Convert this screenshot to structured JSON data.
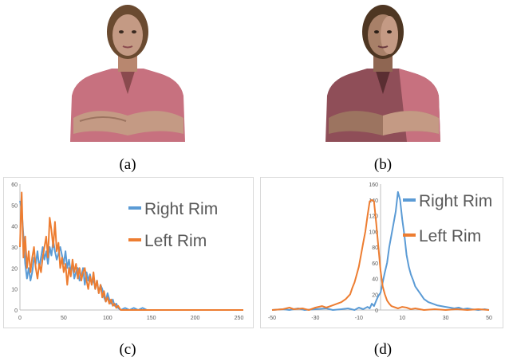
{
  "captions": {
    "a": "(a)",
    "b": "(b)",
    "c": "(c)",
    "d": "(d)"
  },
  "images": {
    "a": {
      "icon": "woman-figure-icon"
    },
    "b": {
      "icon": "woman-figure-icon"
    }
  },
  "colors": {
    "right_rim": "#5b9bd5",
    "left_rim": "#ed7d31",
    "skin": "#c49a84",
    "shirt": "#c7717f",
    "hair": "#6a4a30"
  },
  "chart_data": [
    {
      "type": "line",
      "title": "",
      "xlabel": "",
      "ylabel": "",
      "xlim": [
        0,
        255
      ],
      "ylim": [
        0,
        60
      ],
      "xticks": [
        "0",
        "50",
        "100",
        "150",
        "200",
        "250"
      ],
      "yticks": [
        "0",
        "10",
        "20",
        "30",
        "40",
        "50",
        "60"
      ],
      "legend_position": "top-right",
      "grid": false,
      "series": [
        {
          "name": "Right Rim",
          "color": "#5b9bd5",
          "points": [
            [
              0,
              52
            ],
            [
              2,
              48
            ],
            [
              4,
              35
            ],
            [
              6,
              22
            ],
            [
              8,
              15
            ],
            [
              10,
              20
            ],
            [
              12,
              14
            ],
            [
              14,
              18
            ],
            [
              16,
              25
            ],
            [
              18,
              22
            ],
            [
              20,
              28
            ],
            [
              22,
              20
            ],
            [
              24,
              25
            ],
            [
              26,
              30
            ],
            [
              28,
              24
            ],
            [
              30,
              28
            ],
            [
              32,
              22
            ],
            [
              34,
              30
            ],
            [
              36,
              26
            ],
            [
              38,
              33
            ],
            [
              40,
              28
            ],
            [
              42,
              24
            ],
            [
              44,
              27
            ],
            [
              46,
              30
            ],
            [
              48,
              26
            ],
            [
              50,
              22
            ],
            [
              52,
              28
            ],
            [
              54,
              20
            ],
            [
              56,
              24
            ],
            [
              58,
              18
            ],
            [
              60,
              22
            ],
            [
              62,
              15
            ],
            [
              64,
              18
            ],
            [
              66,
              20
            ],
            [
              68,
              14
            ],
            [
              70,
              16
            ],
            [
              72,
              20
            ],
            [
              74,
              12
            ],
            [
              76,
              18
            ],
            [
              78,
              14
            ],
            [
              80,
              17
            ],
            [
              82,
              12
            ],
            [
              84,
              15
            ],
            [
              86,
              10
            ],
            [
              88,
              14
            ],
            [
              90,
              8
            ],
            [
              92,
              12
            ],
            [
              94,
              10
            ],
            [
              96,
              6
            ],
            [
              98,
              4
            ],
            [
              100,
              8
            ],
            [
              102,
              5
            ],
            [
              104,
              3
            ],
            [
              106,
              5
            ],
            [
              108,
              2
            ],
            [
              110,
              3
            ],
            [
              112,
              1
            ],
            [
              115,
              0
            ],
            [
              120,
              1
            ],
            [
              125,
              0
            ],
            [
              130,
              1
            ],
            [
              135,
              0
            ],
            [
              140,
              1
            ],
            [
              145,
              0
            ],
            [
              150,
              0
            ],
            [
              160,
              0
            ],
            [
              200,
              0
            ],
            [
              255,
              0
            ]
          ]
        },
        {
          "name": "Left Rim",
          "color": "#ed7d31",
          "points": [
            [
              0,
              30
            ],
            [
              1,
              45
            ],
            [
              2,
              56
            ],
            [
              3,
              40
            ],
            [
              4,
              25
            ],
            [
              6,
              35
            ],
            [
              8,
              20
            ],
            [
              10,
              28
            ],
            [
              12,
              18
            ],
            [
              14,
              25
            ],
            [
              16,
              30
            ],
            [
              18,
              20
            ],
            [
              20,
              15
            ],
            [
              22,
              22
            ],
            [
              24,
              18
            ],
            [
              26,
              25
            ],
            [
              28,
              30
            ],
            [
              30,
              35
            ],
            [
              32,
              25
            ],
            [
              34,
              44
            ],
            [
              36,
              38
            ],
            [
              38,
              30
            ],
            [
              40,
              42
            ],
            [
              42,
              28
            ],
            [
              44,
              32
            ],
            [
              46,
              20
            ],
            [
              48,
              25
            ],
            [
              50,
              18
            ],
            [
              52,
              22
            ],
            [
              54,
              12
            ],
            [
              56,
              20
            ],
            [
              58,
              16
            ],
            [
              60,
              24
            ],
            [
              62,
              18
            ],
            [
              64,
              22
            ],
            [
              66,
              15
            ],
            [
              68,
              20
            ],
            [
              70,
              14
            ],
            [
              72,
              18
            ],
            [
              74,
              20
            ],
            [
              76,
              14
            ],
            [
              78,
              10
            ],
            [
              80,
              16
            ],
            [
              82,
              12
            ],
            [
              84,
              18
            ],
            [
              86,
              10
            ],
            [
              88,
              14
            ],
            [
              90,
              8
            ],
            [
              92,
              12
            ],
            [
              94,
              6
            ],
            [
              96,
              9
            ],
            [
              98,
              4
            ],
            [
              100,
              6
            ],
            [
              102,
              3
            ],
            [
              104,
              5
            ],
            [
              106,
              2
            ],
            [
              108,
              3
            ],
            [
              110,
              1
            ],
            [
              112,
              2
            ],
            [
              115,
              0
            ],
            [
              120,
              0
            ],
            [
              255,
              0
            ]
          ]
        }
      ]
    },
    {
      "type": "line",
      "title": "",
      "xlabel": "",
      "ylabel": "",
      "xlim": [
        -50,
        50
      ],
      "ylim": [
        0,
        160
      ],
      "xticks": [
        "-50",
        "-30",
        "-10",
        "10",
        "30",
        "50"
      ],
      "yticks": [
        "0",
        "20",
        "40",
        "60",
        "80",
        "100",
        "120",
        "140",
        "160"
      ],
      "legend_position": "top-right",
      "grid": false,
      "series": [
        {
          "name": "Right Rim",
          "color": "#5b9bd5",
          "points": [
            [
              -50,
              0
            ],
            [
              -45,
              1
            ],
            [
              -42,
              0
            ],
            [
              -38,
              2
            ],
            [
              -35,
              0
            ],
            [
              -30,
              1
            ],
            [
              -25,
              2
            ],
            [
              -22,
              0
            ],
            [
              -18,
              1
            ],
            [
              -15,
              2
            ],
            [
              -12,
              0
            ],
            [
              -10,
              3
            ],
            [
              -8,
              1
            ],
            [
              -6,
              4
            ],
            [
              -5,
              2
            ],
            [
              -4,
              8
            ],
            [
              -3,
              5
            ],
            [
              -2,
              12
            ],
            [
              -1,
              18
            ],
            [
              0,
              22
            ],
            [
              1,
              35
            ],
            [
              2,
              48
            ],
            [
              3,
              60
            ],
            [
              4,
              80
            ],
            [
              5,
              95
            ],
            [
              6,
              110
            ],
            [
              7,
              125
            ],
            [
              8,
              150
            ],
            [
              9,
              140
            ],
            [
              10,
              115
            ],
            [
              11,
              95
            ],
            [
              12,
              70
            ],
            [
              13,
              55
            ],
            [
              14,
              45
            ],
            [
              15,
              38
            ],
            [
              16,
              30
            ],
            [
              17,
              26
            ],
            [
              18,
              22
            ],
            [
              19,
              18
            ],
            [
              20,
              14
            ],
            [
              22,
              10
            ],
            [
              24,
              8
            ],
            [
              26,
              6
            ],
            [
              28,
              5
            ],
            [
              30,
              4
            ],
            [
              32,
              3
            ],
            [
              34,
              2
            ],
            [
              36,
              3
            ],
            [
              38,
              1
            ],
            [
              40,
              2
            ],
            [
              42,
              1
            ],
            [
              45,
              0
            ],
            [
              48,
              1
            ],
            [
              50,
              0
            ]
          ]
        },
        {
          "name": "Left Rim",
          "color": "#ed7d31",
          "points": [
            [
              -50,
              0
            ],
            [
              -45,
              1
            ],
            [
              -42,
              3
            ],
            [
              -40,
              1
            ],
            [
              -36,
              2
            ],
            [
              -33,
              0
            ],
            [
              -30,
              3
            ],
            [
              -27,
              5
            ],
            [
              -25,
              3
            ],
            [
              -22,
              6
            ],
            [
              -20,
              8
            ],
            [
              -18,
              10
            ],
            [
              -16,
              14
            ],
            [
              -14,
              20
            ],
            [
              -13,
              28
            ],
            [
              -12,
              35
            ],
            [
              -11,
              45
            ],
            [
              -10,
              55
            ],
            [
              -9,
              70
            ],
            [
              -8,
              85
            ],
            [
              -7,
              100
            ],
            [
              -6,
              120
            ],
            [
              -5,
              138
            ],
            [
              -4,
              140
            ],
            [
              -3,
              138
            ],
            [
              -2,
              110
            ],
            [
              -1,
              80
            ],
            [
              0,
              50
            ],
            [
              1,
              30
            ],
            [
              2,
              20
            ],
            [
              3,
              12
            ],
            [
              4,
              8
            ],
            [
              5,
              5
            ],
            [
              6,
              4
            ],
            [
              7,
              3
            ],
            [
              8,
              2
            ],
            [
              10,
              4
            ],
            [
              12,
              3
            ],
            [
              14,
              1
            ],
            [
              16,
              2
            ],
            [
              18,
              1
            ],
            [
              20,
              0
            ],
            [
              25,
              1
            ],
            [
              30,
              0
            ],
            [
              35,
              1
            ],
            [
              40,
              0
            ],
            [
              45,
              1
            ],
            [
              50,
              0
            ]
          ]
        }
      ]
    }
  ]
}
